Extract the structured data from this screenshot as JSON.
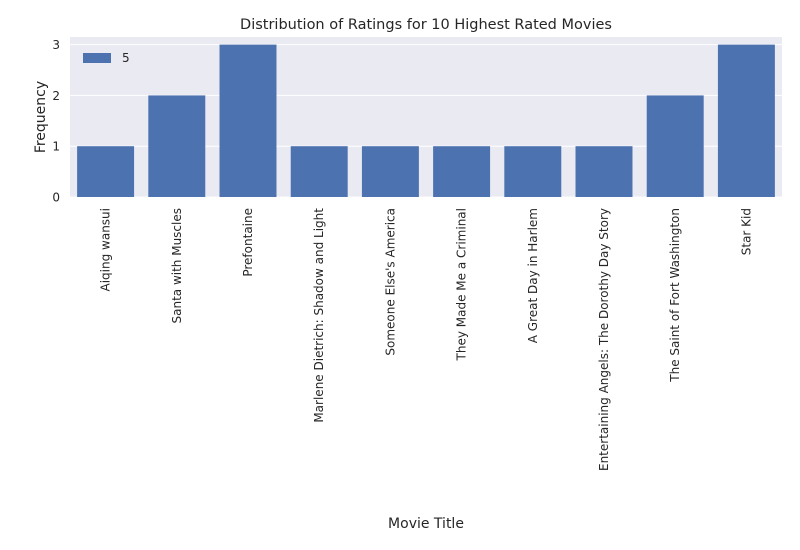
{
  "chart_data": {
    "type": "bar",
    "title": "Distribution of Ratings for 10 Highest Rated Movies",
    "xlabel": "Movie Title",
    "ylabel": "Frequency",
    "categories": [
      "Aiqing wansui",
      "Santa with Muscles",
      "Prefontaine",
      "Marlene Dietrich: Shadow and Light",
      "Someone Else's America",
      "They Made Me a Criminal",
      "A Great Day in Harlem",
      "Entertaining Angels: The Dorothy Day Story",
      "The Saint of Fort Washington",
      "Star Kid"
    ],
    "series": [
      {
        "name": "5",
        "values": [
          1,
          2,
          3,
          1,
          1,
          1,
          1,
          1,
          2,
          3
        ]
      }
    ],
    "ylim": [
      0,
      3.15
    ],
    "yticks": [
      0,
      1,
      2,
      3
    ],
    "grid": true,
    "legend": "upper-left",
    "colors": {
      "bar": "#4c72b0",
      "plot_bg": "#eaeaf2",
      "grid": "#ffffff",
      "text": "#262626"
    }
  }
}
